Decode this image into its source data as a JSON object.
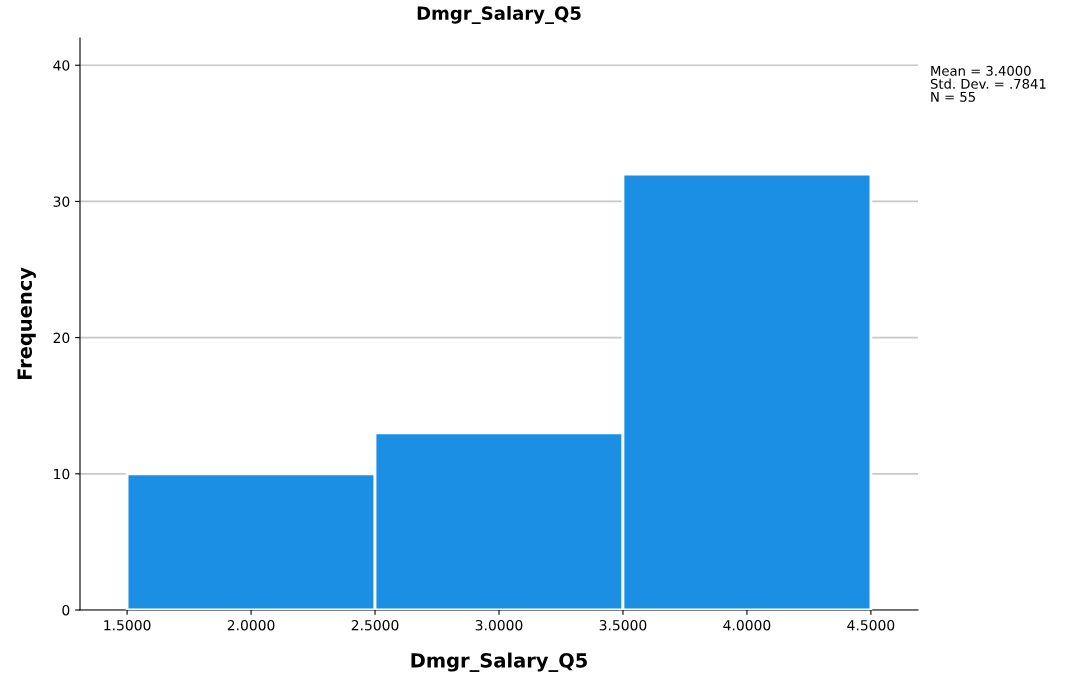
{
  "chart_data": {
    "type": "histogram",
    "title": "Dmgr_Salary_Q5",
    "xlabel": "Dmgr_Salary_Q5",
    "ylabel": "Frequency",
    "bins": [
      1.5,
      2.5,
      3.5,
      4.5
    ],
    "values": [
      10,
      13,
      32
    ],
    "color": "#1a8fe3",
    "xlim": [
      1.31,
      4.69
    ],
    "xticks": [
      {
        "value": 1.5,
        "label": "1.5000"
      },
      {
        "value": 2.0,
        "label": "2.0000"
      },
      {
        "value": 2.5,
        "label": "2.5000"
      },
      {
        "value": 3.0,
        "label": "3.0000"
      },
      {
        "value": 3.5,
        "label": "3.5000"
      },
      {
        "value": 4.0,
        "label": "4.0000"
      },
      {
        "value": 4.5,
        "label": "4.5000"
      }
    ],
    "ylim": [
      0,
      42
    ],
    "yticks": [
      0,
      10,
      20,
      30,
      40
    ],
    "grid": "y",
    "annotations": [
      "Mean = 3.4000",
      "Std. Dev. = .7841",
      "N = 55"
    ]
  }
}
